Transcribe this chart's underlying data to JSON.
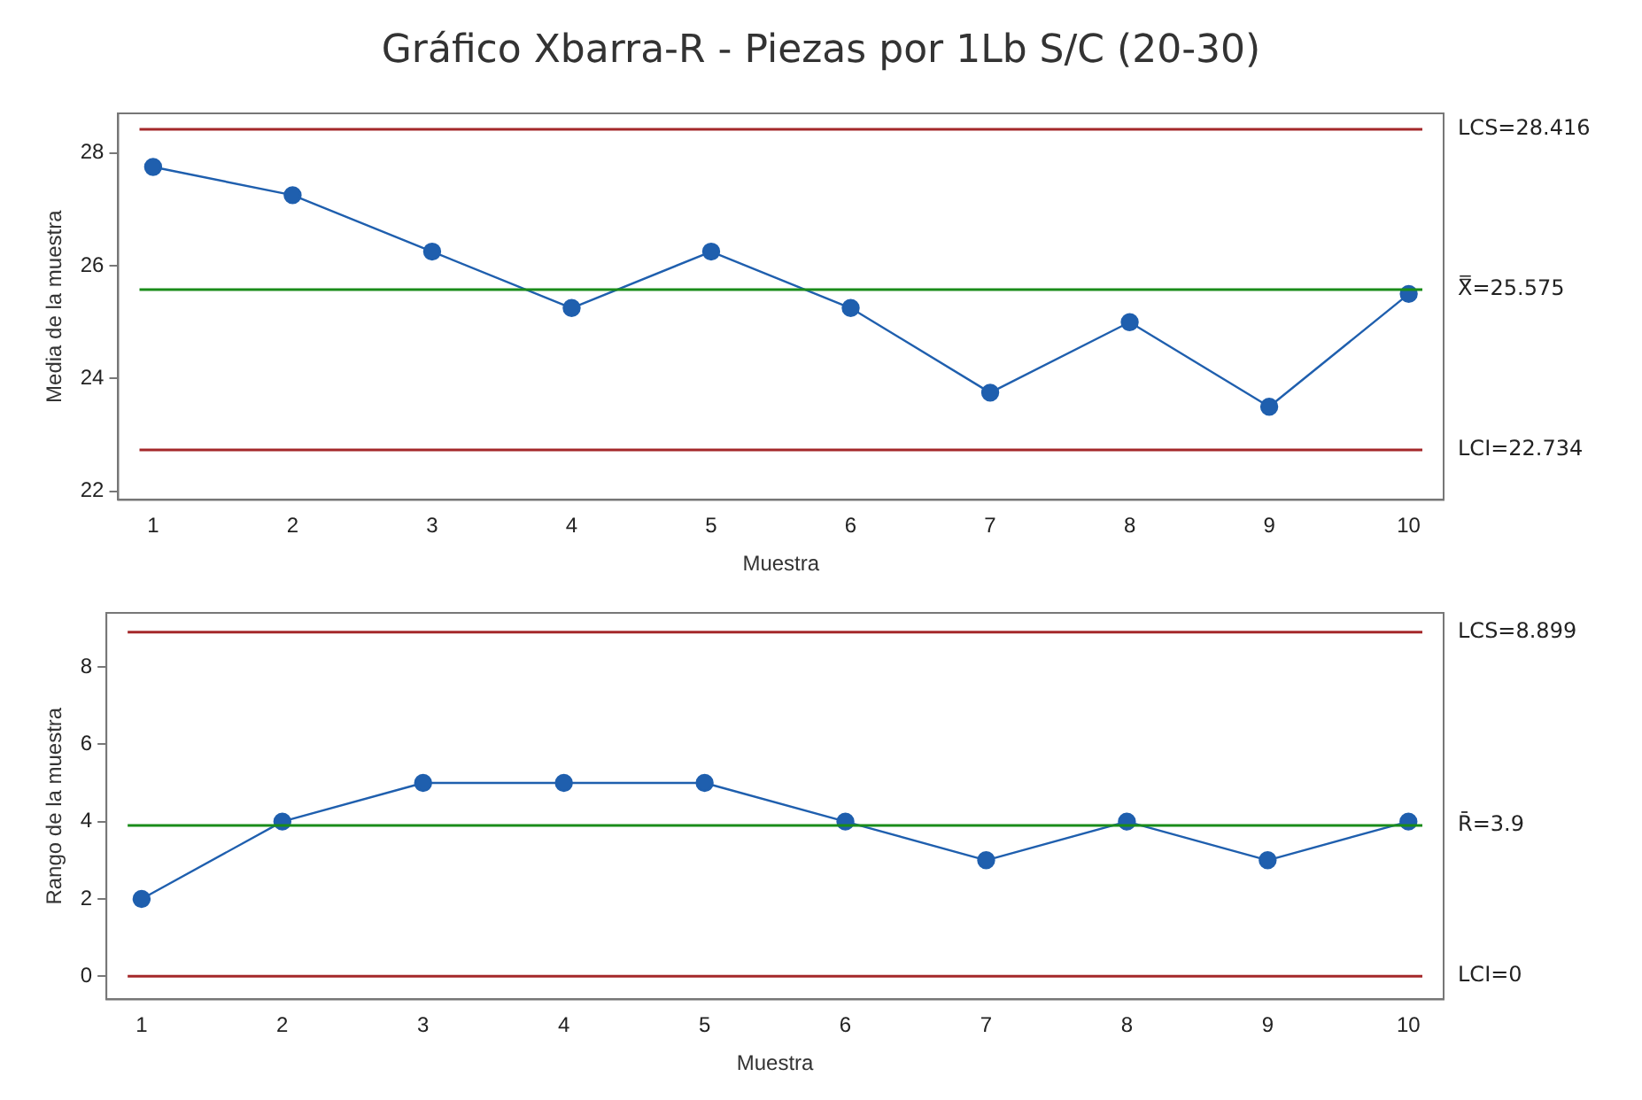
{
  "chart_data": [
    {
      "type": "line",
      "title": "Gráfico Xbarra-R - Piezas por 1Lb S/C (20-30)",
      "xlabel": "Muestra",
      "ylabel": "Media de la muestra",
      "x": [
        1,
        2,
        3,
        4,
        5,
        6,
        7,
        8,
        9,
        10
      ],
      "series": [
        {
          "color": "#1f5fae",
          "values": [
            27.75,
            27.25,
            26.25,
            25.25,
            26.25,
            25.25,
            23.75,
            25.0,
            23.5,
            25.5
          ]
        }
      ],
      "xlim": [
        0.75,
        10.25
      ],
      "xticks": [
        1,
        2,
        3,
        4,
        5,
        6,
        7,
        8,
        9,
        10
      ],
      "ylim": [
        21.85,
        28.7
      ],
      "yticks": [
        22,
        24,
        26,
        28
      ],
      "grid": false,
      "legend": false,
      "marker": "circle",
      "line_style": "solid",
      "ref_lines": [
        {
          "axis": "y",
          "value": 28.416,
          "label": "LCS=28.416",
          "color": "#a4282a"
        },
        {
          "axis": "y",
          "value": 25.575,
          "label": "X̿=25.575",
          "color": "#1a8c1a"
        },
        {
          "axis": "y",
          "value": 22.734,
          "label": "LCI=22.734",
          "color": "#a4282a"
        }
      ]
    },
    {
      "type": "line",
      "xlabel": "Muestra",
      "ylabel": "Rango de la muestra",
      "x": [
        1,
        2,
        3,
        4,
        5,
        6,
        7,
        8,
        9,
        10
      ],
      "series": [
        {
          "color": "#1f5fae",
          "values": [
            2,
            4,
            5,
            5,
            5,
            4,
            3,
            4,
            3,
            4
          ]
        }
      ],
      "xlim": [
        0.75,
        10.25
      ],
      "xticks": [
        1,
        2,
        3,
        4,
        5,
        6,
        7,
        8,
        9,
        10
      ],
      "ylim": [
        -0.6,
        9.4
      ],
      "yticks": [
        0,
        2,
        4,
        6,
        8
      ],
      "grid": false,
      "legend": false,
      "marker": "circle",
      "line_style": "solid",
      "ref_lines": [
        {
          "axis": "y",
          "value": 8.899,
          "label": "LCS=8.899",
          "color": "#a4282a"
        },
        {
          "axis": "y",
          "value": 3.9,
          "label": "R̄=3.9",
          "color": "#1a8c1a"
        },
        {
          "axis": "y",
          "value": 0,
          "label": "LCI=0",
          "color": "#a4282a"
        }
      ]
    }
  ]
}
